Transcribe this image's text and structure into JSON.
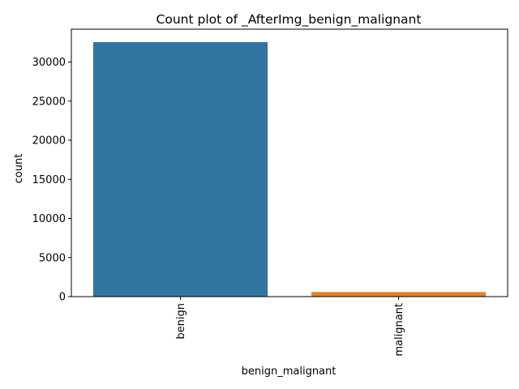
{
  "chart_data": {
    "type": "bar",
    "title": "Count plot of _AfterImg_benign_malignant",
    "xlabel": "benign_malignant",
    "ylabel": "count",
    "categories": [
      "benign",
      "malignant"
    ],
    "values": [
      32542,
      584
    ],
    "colors": [
      "#3274a1",
      "#e1812c"
    ],
    "ylim": [
      0,
      34200
    ],
    "yticks": [
      0,
      5000,
      10000,
      15000,
      20000,
      25000,
      30000
    ],
    "ytick_labels": [
      "0",
      "5000",
      "10000",
      "15000",
      "20000",
      "25000",
      "30000"
    ],
    "xtick_rotation": "vertical",
    "grid": false
  }
}
